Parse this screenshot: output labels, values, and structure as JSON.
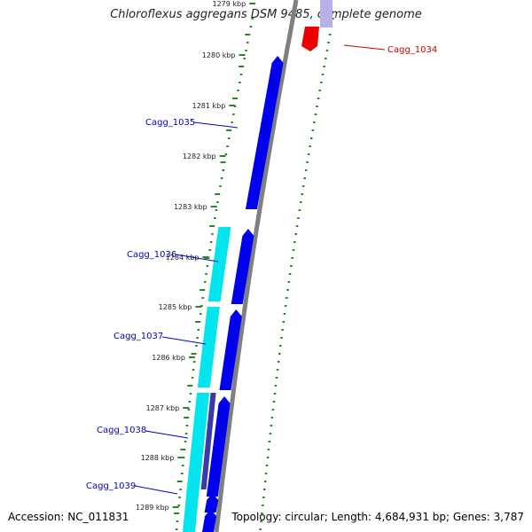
{
  "title": "Chloroflexus aggregans DSM 9485, complete genome",
  "footer": {
    "accession": "Accession: NC_011831",
    "summary": "Topology: circular; Length: 4,684,931 bp; Genes: 3,787"
  },
  "colors": {
    "forward_cds": "#0000ee",
    "reverse_cds": "#ee0000",
    "rna_strand": "#00e5ee",
    "gc_skew": "#228b22",
    "backbone": "#808080",
    "label_forward": "#0000cc",
    "label_reverse": "#cc0000"
  },
  "ticks": [
    {
      "label": "1279 kbp"
    },
    {
      "label": "1280 kbp"
    },
    {
      "label": "1281 kbp"
    },
    {
      "label": "1282 kbp"
    },
    {
      "label": "1283 kbp"
    },
    {
      "label": "1284 kbp"
    },
    {
      "label": "1285 kbp"
    },
    {
      "label": "1286 kbp"
    },
    {
      "label": "1287 kbp"
    },
    {
      "label": "1288 kbp"
    },
    {
      "label": "1289 kbp"
    }
  ],
  "gene_labels": [
    {
      "text": "Cagg_1034",
      "strand": "reverse"
    },
    {
      "text": "Cagg_1035",
      "strand": "forward"
    },
    {
      "text": "Cagg_1036",
      "strand": "forward"
    },
    {
      "text": "Cagg_1037",
      "strand": "forward"
    },
    {
      "text": "Cagg_1038",
      "strand": "forward"
    },
    {
      "text": "Cagg_1039",
      "strand": "forward"
    }
  ]
}
